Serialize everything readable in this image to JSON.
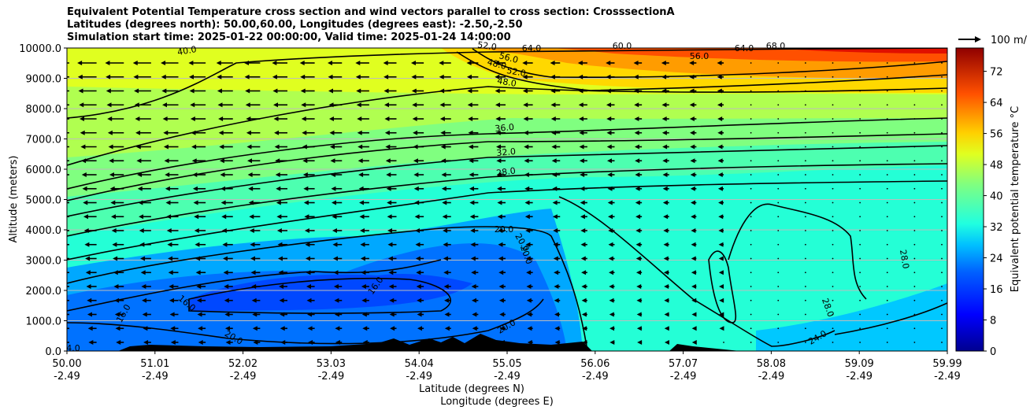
{
  "titles": [
    "Equivalent Potential Temperature cross section and wind vectors parallel to cross section: CrosssectionA",
    "Latitudes (degrees north): 50.00,60.00, Longitudes (degrees east): -2.50,-2.50",
    "Simulation start time: 2025-01-22 00:00:00, Valid time: 2025-01-24 14:00:00"
  ],
  "chart_data": {
    "type": "heatmap",
    "ylabel": "Altitude (meters)",
    "xlabel": "Latitude (degrees N)",
    "xlabel2": "Longitude (degrees E)",
    "ylim": [
      0,
      10000
    ],
    "yticks": [
      "0.0",
      "1000.0",
      "2000.0",
      "3000.0",
      "4000.0",
      "5000.0",
      "6000.0",
      "7000.0",
      "8000.0",
      "9000.0",
      "10000.0"
    ],
    "xtick_lat": [
      "50.00",
      "51.01",
      "52.02",
      "53.03",
      "54.04",
      "55.05",
      "56.06",
      "57.07",
      "58.08",
      "59.09",
      "59.99"
    ],
    "xtick_lon": [
      "-2.49",
      "-2.49",
      "-2.49",
      "-2.49",
      "-2.49",
      "-2.49",
      "-2.49",
      "-2.49",
      "-2.49",
      "-2.49",
      "-2.49"
    ],
    "colorbar": {
      "label": "Equivalent potential temperature $^\\circ$C",
      "ticks": [
        "0",
        "8",
        "16",
        "24",
        "32",
        "40",
        "48",
        "56",
        "64",
        "72"
      ],
      "range": [
        0,
        78
      ]
    },
    "quiver_key": "100 m/",
    "contour_labels": [
      "4.0",
      "16.0",
      "16.0",
      "16.0",
      "20.0",
      "20.0",
      "20.0",
      "20.0",
      "20.0",
      "24.0",
      "28.0",
      "28.0",
      "28.0",
      "32.0",
      "36.0",
      "40.0",
      "48.0",
      "48.0",
      "52.0",
      "52.0",
      "56.0",
      "56.0",
      "60.0",
      "64.0",
      "64.0",
      "68.0"
    ],
    "grid": "horizontal"
  }
}
